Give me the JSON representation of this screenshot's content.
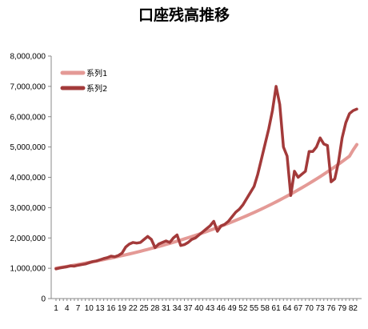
{
  "chart_data": {
    "type": "line",
    "title": "口座残高推移",
    "xlabel": "",
    "ylabel": "",
    "ylim": [
      0,
      8000000
    ],
    "yticks": [
      0,
      1000000,
      2000000,
      3000000,
      4000000,
      5000000,
      6000000,
      7000000,
      8000000
    ],
    "ytick_labels": [
      "0",
      "1,000,000",
      "2,000,000",
      "3,000,000",
      "4,000,000",
      "5,000,000",
      "6,000,000",
      "7,000,000",
      "8,000,000"
    ],
    "x": [
      1,
      2,
      3,
      4,
      5,
      6,
      7,
      8,
      9,
      10,
      11,
      12,
      13,
      14,
      15,
      16,
      17,
      18,
      19,
      20,
      21,
      22,
      23,
      24,
      25,
      26,
      27,
      28,
      29,
      30,
      31,
      32,
      33,
      34,
      35,
      36,
      37,
      38,
      39,
      40,
      41,
      42,
      43,
      44,
      45,
      46,
      47,
      48,
      49,
      50,
      51,
      52,
      53,
      54,
      55,
      56,
      57,
      58,
      59,
      60,
      61,
      62,
      63,
      64,
      65,
      66,
      67,
      68,
      69,
      70,
      71,
      72,
      73,
      74,
      75,
      76,
      77,
      78,
      79,
      80,
      81,
      82,
      83
    ],
    "xtick_labels": [
      "1",
      "4",
      "7",
      "10",
      "13",
      "16",
      "19",
      "22",
      "25",
      "28",
      "31",
      "34",
      "37",
      "40",
      "43",
      "46",
      "49",
      "52",
      "55",
      "58",
      "61",
      "64",
      "67",
      "70",
      "73",
      "76",
      "79",
      "82"
    ],
    "xtick_values": [
      1,
      4,
      7,
      10,
      13,
      16,
      19,
      22,
      25,
      28,
      31,
      34,
      37,
      40,
      43,
      46,
      49,
      52,
      55,
      58,
      61,
      64,
      67,
      70,
      73,
      76,
      79,
      82
    ],
    "grid": false,
    "legend_position": "top-left",
    "series": [
      {
        "name": "系列1",
        "color": "#e49a96",
        "values": [
          1000000,
          1020000,
          1040000,
          1060000,
          1081000,
          1102000,
          1124000,
          1146000,
          1168000,
          1191000,
          1214000,
          1238000,
          1262000,
          1286000,
          1311000,
          1337000,
          1363000,
          1390000,
          1417000,
          1444000,
          1472000,
          1501000,
          1531000,
          1561000,
          1591000,
          1622000,
          1654000,
          1686000,
          1719000,
          1752000,
          1786000,
          1821000,
          1857000,
          1893000,
          1930000,
          1968000,
          2006000,
          2045000,
          2085000,
          2126000,
          2168000,
          2210000,
          2253000,
          2297000,
          2342000,
          2387000,
          2434000,
          2481000,
          2530000,
          2580000,
          2630000,
          2681000,
          2733000,
          2786000,
          2841000,
          2896000,
          2952000,
          3010000,
          3069000,
          3129000,
          3190000,
          3252000,
          3316000,
          3381000,
          3447000,
          3514000,
          3583000,
          3653000,
          3724000,
          3797000,
          3871000,
          3946000,
          4023000,
          4101000,
          4181000,
          4263000,
          4346000,
          4431000,
          4518000,
          4606000,
          4696000,
          4900000,
          5080000
        ]
      },
      {
        "name": "系列2",
        "color": "#a33a3a",
        "values": [
          980000,
          1010000,
          1030000,
          1050000,
          1080000,
          1070000,
          1100000,
          1120000,
          1140000,
          1180000,
          1220000,
          1240000,
          1280000,
          1320000,
          1350000,
          1400000,
          1380000,
          1420000,
          1500000,
          1700000,
          1800000,
          1850000,
          1830000,
          1850000,
          1950000,
          2050000,
          1950000,
          1680000,
          1800000,
          1850000,
          1900000,
          1850000,
          2000000,
          2100000,
          1750000,
          1780000,
          1850000,
          1950000,
          2000000,
          2100000,
          2200000,
          2300000,
          2400000,
          2550000,
          2220000,
          2400000,
          2450000,
          2550000,
          2700000,
          2850000,
          2950000,
          3100000,
          3300000,
          3500000,
          3700000,
          4100000,
          4600000,
          5100000,
          5600000,
          6200000,
          7000000,
          6400000,
          5000000,
          4700000,
          3400000,
          4200000,
          4000000,
          4100000,
          4200000,
          4850000,
          4850000,
          5000000,
          5300000,
          5100000,
          5050000,
          3850000,
          3950000,
          4500000,
          5300000,
          5800000,
          6100000,
          6200000,
          6250000
        ]
      }
    ]
  }
}
